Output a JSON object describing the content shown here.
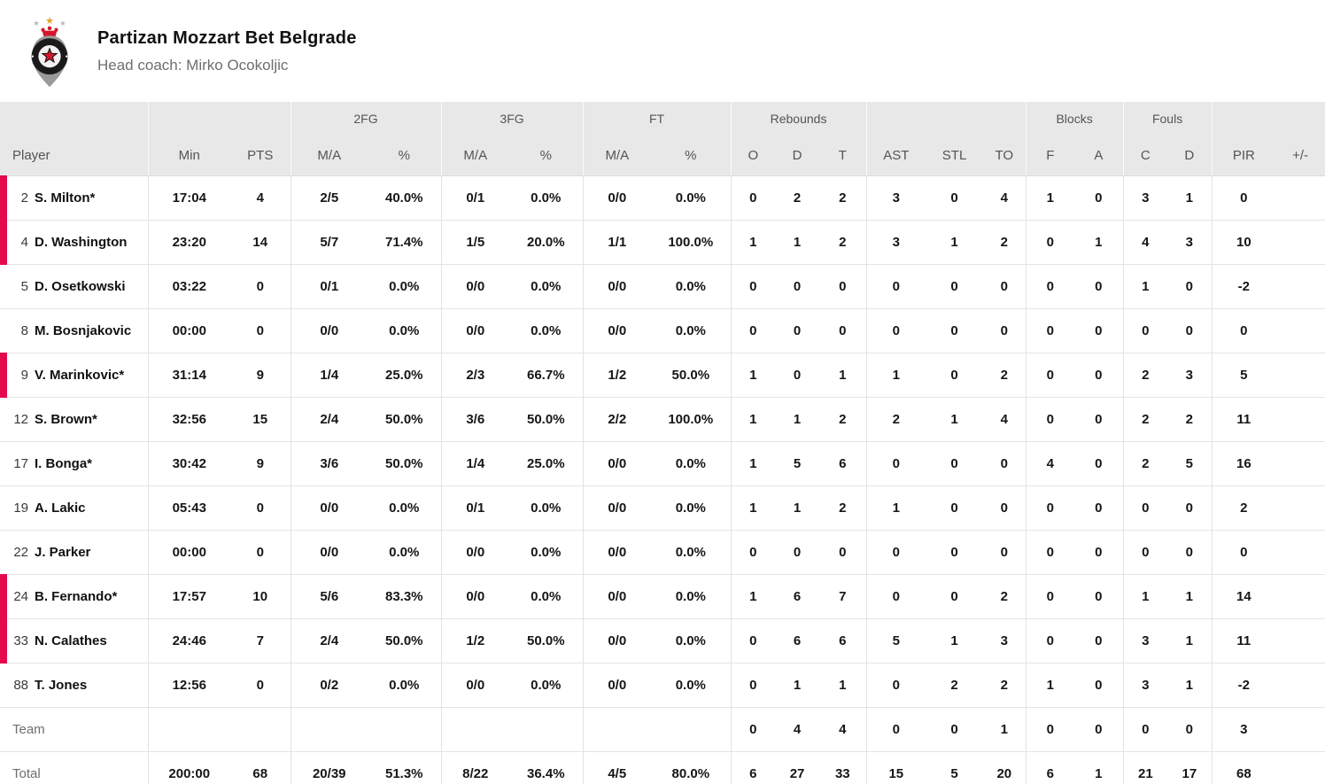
{
  "team_header": {
    "name": "Partizan Mozzart Bet Belgrade",
    "coach": "Head coach: Mirko Ocokoljic",
    "logo_icon": "partizan-crest-icon"
  },
  "colors": {
    "accent": "#e4094e",
    "logo_red": "#d6152c",
    "logo_gold": "#e3a430",
    "logo_gray": "#9a9a9a",
    "header_bg": "#e8e8e8"
  },
  "table": {
    "groups": {
      "fg2": "2FG",
      "fg3": "3FG",
      "ft": "FT",
      "rebounds": "Rebounds",
      "blocks": "Blocks",
      "fouls": "Fouls"
    },
    "columns": {
      "player": "Player",
      "min": "Min",
      "pts": "PTS",
      "ma": "M/A",
      "pct": "%",
      "reb_o": "O",
      "reb_d": "D",
      "reb_t": "T",
      "ast": "AST",
      "stl": "STL",
      "to": "TO",
      "blk_f": "F",
      "blk_a": "A",
      "foul_c": "C",
      "foul_d": "D",
      "pir": "PIR",
      "plus_minus": "+/-"
    },
    "rows": [
      {
        "type": "player",
        "number": "2",
        "name": "S. Milton*",
        "on_court": true,
        "min": "17:04",
        "pts": "4",
        "fg2_ma": "2/5",
        "fg2_pct": "40.0%",
        "fg3_ma": "0/1",
        "fg3_pct": "0.0%",
        "ft_ma": "0/0",
        "ft_pct": "0.0%",
        "reb_o": "0",
        "reb_d": "2",
        "reb_t": "2",
        "ast": "3",
        "stl": "0",
        "to": "4",
        "blk_f": "1",
        "blk_a": "0",
        "foul_c": "3",
        "foul_d": "1",
        "pir": "0",
        "plus_minus": ""
      },
      {
        "type": "player",
        "number": "4",
        "name": "D. Washington",
        "on_court": true,
        "min": "23:20",
        "pts": "14",
        "fg2_ma": "5/7",
        "fg2_pct": "71.4%",
        "fg3_ma": "1/5",
        "fg3_pct": "20.0%",
        "ft_ma": "1/1",
        "ft_pct": "100.0%",
        "reb_o": "1",
        "reb_d": "1",
        "reb_t": "2",
        "ast": "3",
        "stl": "1",
        "to": "2",
        "blk_f": "0",
        "blk_a": "1",
        "foul_c": "4",
        "foul_d": "3",
        "pir": "10",
        "plus_minus": ""
      },
      {
        "type": "player",
        "number": "5",
        "name": "D. Osetkowski",
        "on_court": false,
        "min": "03:22",
        "pts": "0",
        "fg2_ma": "0/1",
        "fg2_pct": "0.0%",
        "fg3_ma": "0/0",
        "fg3_pct": "0.0%",
        "ft_ma": "0/0",
        "ft_pct": "0.0%",
        "reb_o": "0",
        "reb_d": "0",
        "reb_t": "0",
        "ast": "0",
        "stl": "0",
        "to": "0",
        "blk_f": "0",
        "blk_a": "0",
        "foul_c": "1",
        "foul_d": "0",
        "pir": "-2",
        "plus_minus": ""
      },
      {
        "type": "player",
        "number": "8",
        "name": "M. Bosnjakovic",
        "on_court": false,
        "min": "00:00",
        "pts": "0",
        "fg2_ma": "0/0",
        "fg2_pct": "0.0%",
        "fg3_ma": "0/0",
        "fg3_pct": "0.0%",
        "ft_ma": "0/0",
        "ft_pct": "0.0%",
        "reb_o": "0",
        "reb_d": "0",
        "reb_t": "0",
        "ast": "0",
        "stl": "0",
        "to": "0",
        "blk_f": "0",
        "blk_a": "0",
        "foul_c": "0",
        "foul_d": "0",
        "pir": "0",
        "plus_minus": ""
      },
      {
        "type": "player",
        "number": "9",
        "name": "V. Marinkovic*",
        "on_court": true,
        "min": "31:14",
        "pts": "9",
        "fg2_ma": "1/4",
        "fg2_pct": "25.0%",
        "fg3_ma": "2/3",
        "fg3_pct": "66.7%",
        "ft_ma": "1/2",
        "ft_pct": "50.0%",
        "reb_o": "1",
        "reb_d": "0",
        "reb_t": "1",
        "ast": "1",
        "stl": "0",
        "to": "2",
        "blk_f": "0",
        "blk_a": "0",
        "foul_c": "2",
        "foul_d": "3",
        "pir": "5",
        "plus_minus": ""
      },
      {
        "type": "player",
        "number": "12",
        "name": "S. Brown*",
        "on_court": false,
        "min": "32:56",
        "pts": "15",
        "fg2_ma": "2/4",
        "fg2_pct": "50.0%",
        "fg3_ma": "3/6",
        "fg3_pct": "50.0%",
        "ft_ma": "2/2",
        "ft_pct": "100.0%",
        "reb_o": "1",
        "reb_d": "1",
        "reb_t": "2",
        "ast": "2",
        "stl": "1",
        "to": "4",
        "blk_f": "0",
        "blk_a": "0",
        "foul_c": "2",
        "foul_d": "2",
        "pir": "11",
        "plus_minus": ""
      },
      {
        "type": "player",
        "number": "17",
        "name": "I. Bonga*",
        "on_court": false,
        "min": "30:42",
        "pts": "9",
        "fg2_ma": "3/6",
        "fg2_pct": "50.0%",
        "fg3_ma": "1/4",
        "fg3_pct": "25.0%",
        "ft_ma": "0/0",
        "ft_pct": "0.0%",
        "reb_o": "1",
        "reb_d": "5",
        "reb_t": "6",
        "ast": "0",
        "stl": "0",
        "to": "0",
        "blk_f": "4",
        "blk_a": "0",
        "foul_c": "2",
        "foul_d": "5",
        "pir": "16",
        "plus_minus": ""
      },
      {
        "type": "player",
        "number": "19",
        "name": "A. Lakic",
        "on_court": false,
        "min": "05:43",
        "pts": "0",
        "fg2_ma": "0/0",
        "fg2_pct": "0.0%",
        "fg3_ma": "0/1",
        "fg3_pct": "0.0%",
        "ft_ma": "0/0",
        "ft_pct": "0.0%",
        "reb_o": "1",
        "reb_d": "1",
        "reb_t": "2",
        "ast": "1",
        "stl": "0",
        "to": "0",
        "blk_f": "0",
        "blk_a": "0",
        "foul_c": "0",
        "foul_d": "0",
        "pir": "2",
        "plus_minus": ""
      },
      {
        "type": "player",
        "number": "22",
        "name": "J. Parker",
        "on_court": false,
        "min": "00:00",
        "pts": "0",
        "fg2_ma": "0/0",
        "fg2_pct": "0.0%",
        "fg3_ma": "0/0",
        "fg3_pct": "0.0%",
        "ft_ma": "0/0",
        "ft_pct": "0.0%",
        "reb_o": "0",
        "reb_d": "0",
        "reb_t": "0",
        "ast": "0",
        "stl": "0",
        "to": "0",
        "blk_f": "0",
        "blk_a": "0",
        "foul_c": "0",
        "foul_d": "0",
        "pir": "0",
        "plus_minus": ""
      },
      {
        "type": "player",
        "number": "24",
        "name": "B. Fernando*",
        "on_court": true,
        "min": "17:57",
        "pts": "10",
        "fg2_ma": "5/6",
        "fg2_pct": "83.3%",
        "fg3_ma": "0/0",
        "fg3_pct": "0.0%",
        "ft_ma": "0/0",
        "ft_pct": "0.0%",
        "reb_o": "1",
        "reb_d": "6",
        "reb_t": "7",
        "ast": "0",
        "stl": "0",
        "to": "2",
        "blk_f": "0",
        "blk_a": "0",
        "foul_c": "1",
        "foul_d": "1",
        "pir": "14",
        "plus_minus": ""
      },
      {
        "type": "player",
        "number": "33",
        "name": "N. Calathes",
        "on_court": true,
        "min": "24:46",
        "pts": "7",
        "fg2_ma": "2/4",
        "fg2_pct": "50.0%",
        "fg3_ma": "1/2",
        "fg3_pct": "50.0%",
        "ft_ma": "0/0",
        "ft_pct": "0.0%",
        "reb_o": "0",
        "reb_d": "6",
        "reb_t": "6",
        "ast": "5",
        "stl": "1",
        "to": "3",
        "blk_f": "0",
        "blk_a": "0",
        "foul_c": "3",
        "foul_d": "1",
        "pir": "11",
        "plus_minus": ""
      },
      {
        "type": "player",
        "number": "88",
        "name": "T. Jones",
        "on_court": false,
        "min": "12:56",
        "pts": "0",
        "fg2_ma": "0/2",
        "fg2_pct": "0.0%",
        "fg3_ma": "0/0",
        "fg3_pct": "0.0%",
        "ft_ma": "0/0",
        "ft_pct": "0.0%",
        "reb_o": "0",
        "reb_d": "1",
        "reb_t": "1",
        "ast": "0",
        "stl": "2",
        "to": "2",
        "blk_f": "1",
        "blk_a": "0",
        "foul_c": "3",
        "foul_d": "1",
        "pir": "-2",
        "plus_minus": ""
      },
      {
        "type": "team",
        "label": "Team",
        "on_court": false,
        "min": "",
        "pts": "",
        "fg2_ma": "",
        "fg2_pct": "",
        "fg3_ma": "",
        "fg3_pct": "",
        "ft_ma": "",
        "ft_pct": "",
        "reb_o": "0",
        "reb_d": "4",
        "reb_t": "4",
        "ast": "0",
        "stl": "0",
        "to": "1",
        "blk_f": "0",
        "blk_a": "0",
        "foul_c": "0",
        "foul_d": "0",
        "pir": "3",
        "plus_minus": ""
      },
      {
        "type": "total",
        "label": "Total",
        "on_court": false,
        "min": "200:00",
        "pts": "68",
        "fg2_ma": "20/39",
        "fg2_pct": "51.3%",
        "fg3_ma": "8/22",
        "fg3_pct": "36.4%",
        "ft_ma": "4/5",
        "ft_pct": "80.0%",
        "reb_o": "6",
        "reb_d": "27",
        "reb_t": "33",
        "ast": "15",
        "stl": "5",
        "to": "20",
        "blk_f": "6",
        "blk_a": "1",
        "foul_c": "21",
        "foul_d": "17",
        "pir": "68",
        "plus_minus": ""
      }
    ]
  }
}
